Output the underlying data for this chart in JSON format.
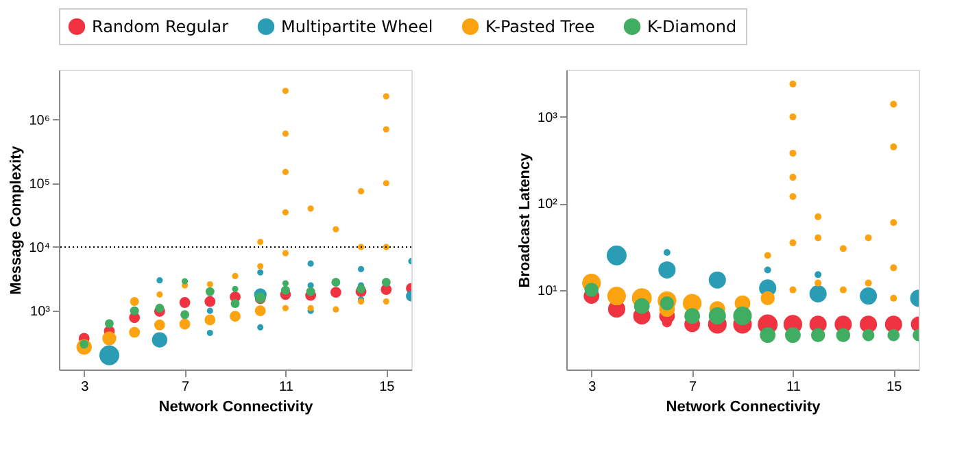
{
  "chart_data": [
    {
      "type": "bubble",
      "xlabel": "Network Connectivity",
      "ylabel": "Message Complexity",
      "log": "y",
      "legend": "top",
      "grid": false,
      "marker": "circle",
      "xlim": [
        2,
        16
      ],
      "xticks": [
        3,
        7,
        11,
        15
      ],
      "ylim": [
        120,
        6000000
      ],
      "yticks": [
        {
          "value": 1000,
          "label": "10³"
        },
        {
          "value": 10000,
          "label": "10⁴"
        },
        {
          "value": 100000,
          "label": "10⁵"
        },
        {
          "value": 1000000,
          "label": "10⁶"
        }
      ],
      "ref_lines": [
        {
          "axis": "y",
          "value": 10000,
          "label": null,
          "color": "#000000",
          "line_style": "dotted"
        }
      ],
      "series": [
        {
          "name": "Random Regular",
          "color": "#ef3340",
          "x": [
            3,
            4,
            5,
            6,
            7,
            8,
            9,
            10,
            11,
            12,
            13,
            14,
            15,
            16
          ],
          "values": [
            370,
            480,
            780,
            980,
            1350,
            1400,
            1650,
            1550,
            1800,
            1750,
            1950,
            2000,
            2150,
            2250
          ],
          "sizes": [
            0.3,
            0.3,
            0.3,
            0.3,
            0.3,
            0.3,
            0.3,
            0.3,
            0.3,
            0.3,
            0.3,
            0.3,
            0.3,
            0.3
          ]
        },
        {
          "name": "Multipartite Wheel",
          "color": "#2a9db5",
          "x": [
            4,
            6,
            6,
            8,
            8,
            10,
            10,
            10,
            12,
            12,
            12,
            14,
            14,
            14,
            16,
            16
          ],
          "values": [
            200,
            350,
            3000,
            450,
            1000,
            550,
            1800,
            4000,
            1000,
            2500,
            5500,
            1500,
            2500,
            4500,
            1700,
            6000
          ],
          "sizes": [
            1,
            0.6,
            0.1,
            0.1,
            0.1,
            0.1,
            0.4,
            0.1,
            0.1,
            0.1,
            0.1,
            0.1,
            0.1,
            0.1,
            0.3,
            0.1
          ]
        },
        {
          "name": "K-Pasted Tree",
          "color": "#fca311",
          "x": [
            3,
            4,
            5,
            5,
            6,
            6,
            7,
            7,
            8,
            8,
            9,
            9,
            10,
            10,
            10,
            11,
            11,
            11,
            11,
            11,
            11,
            12,
            12,
            13,
            13,
            14,
            14,
            14,
            15,
            15,
            15,
            15,
            15
          ],
          "values": [
            270,
            370,
            460,
            1400,
            600,
            1800,
            620,
            2500,
            720,
            2600,
            820,
            3500,
            1000,
            5000,
            12000,
            1100,
            8000,
            35000,
            150000,
            600000,
            2800000,
            1100,
            40000,
            1050,
            19000,
            1400,
            10000,
            75000,
            1400,
            10000,
            100000,
            700000,
            2300000
          ],
          "sizes": [
            0.6,
            0.5,
            0.3,
            0.2,
            0.3,
            0.1,
            0.3,
            0.1,
            0.3,
            0.1,
            0.3,
            0.1,
            0.3,
            0.1,
            0.1,
            0.1,
            0.1,
            0.1,
            0.1,
            0.1,
            0.1,
            0.1,
            0.1,
            0.1,
            0.1,
            0.1,
            0.1,
            0.1,
            0.1,
            0.1,
            0.1,
            0.1,
            0.1
          ]
        },
        {
          "name": "K-Diamond",
          "color": "#40ad63",
          "x": [
            3,
            4,
            5,
            6,
            7,
            7,
            8,
            9,
            9,
            10,
            11,
            11,
            12,
            13,
            14,
            15
          ],
          "values": [
            300,
            630,
            1000,
            1100,
            870,
            2900,
            2000,
            1300,
            2200,
            1600,
            2100,
            2700,
            2000,
            2800,
            2200,
            2800
          ],
          "sizes": [
            0.2,
            0.2,
            0.2,
            0.2,
            0.2,
            0.1,
            0.2,
            0.2,
            0.1,
            0.3,
            0.2,
            0.1,
            0.2,
            0.2,
            0.2,
            0.2
          ]
        }
      ]
    },
    {
      "type": "bubble",
      "xlabel": "Network Connectivity",
      "ylabel": "Broadcast Latency",
      "log": "y",
      "grid": false,
      "marker": "circle",
      "xlim": [
        2,
        16
      ],
      "xticks": [
        3,
        7,
        11,
        15
      ],
      "ylim": [
        1.2,
        3500
      ],
      "yticks": [
        {
          "value": 10,
          "label": "10¹"
        },
        {
          "value": 100,
          "label": "10²"
        },
        {
          "value": 1000,
          "label": "10³"
        }
      ],
      "series": [
        {
          "name": "Random Regular",
          "color": "#ef3340",
          "x": [
            3,
            4,
            5,
            6,
            6,
            7,
            8,
            9,
            10,
            11,
            12,
            13,
            14,
            15,
            16
          ],
          "values": [
            8.5,
            6,
            5,
            5,
            4.2,
            4,
            4,
            4,
            4,
            4,
            4,
            4,
            4,
            4,
            4
          ],
          "sizes": [
            0.62,
            0.75,
            0.75,
            0.62,
            0.25,
            0.62,
            0.88,
            0.88,
            1,
            0.88,
            0.75,
            0.75,
            0.75,
            0.75,
            0.62
          ]
        },
        {
          "name": "Multipartite Wheel",
          "color": "#2a9db5",
          "x": [
            4,
            6,
            6,
            8,
            10,
            10,
            12,
            12,
            14,
            16
          ],
          "values": [
            25,
            17,
            27,
            13,
            10.5,
            17,
            9,
            15,
            8.5,
            8
          ],
          "sizes": [
            1,
            0.75,
            0.12,
            0.75,
            0.75,
            0.12,
            0.75,
            0.12,
            0.75,
            0.75
          ]
        },
        {
          "name": "K-Pasted Tree",
          "color": "#fca311",
          "x": [
            3,
            4,
            5,
            6,
            6,
            7,
            8,
            9,
            10,
            10,
            11,
            11,
            11,
            11,
            11,
            11,
            11,
            12,
            12,
            12,
            13,
            13,
            14,
            14,
            15,
            15,
            15,
            15,
            15
          ],
          "values": [
            12,
            8.5,
            8,
            7.5,
            6,
            7,
            6,
            7,
            8,
            25,
            10,
            35,
            120,
            200,
            380,
            1000,
            2400,
            12,
            40,
            70,
            10,
            30,
            12,
            40,
            8,
            18,
            60,
            450,
            1400
          ],
          "sizes": [
            0.88,
            0.88,
            1,
            0.88,
            0.62,
            0.88,
            0.62,
            0.62,
            0.5,
            0.12,
            0.12,
            0.12,
            0.12,
            0.12,
            0.12,
            0.12,
            0.12,
            0.12,
            0.12,
            0.12,
            0.12,
            0.12,
            0.12,
            0.12,
            0.12,
            0.12,
            0.12,
            0.12,
            0.12
          ]
        },
        {
          "name": "K-Diamond",
          "color": "#40ad63",
          "x": [
            3,
            5,
            6,
            7,
            8,
            9,
            10,
            11,
            12,
            13,
            14,
            15,
            16
          ],
          "values": [
            10,
            6.5,
            7,
            5,
            5,
            5,
            3,
            3,
            3,
            3,
            3,
            3,
            3
          ],
          "sizes": [
            0.5,
            0.62,
            0.5,
            0.62,
            0.75,
            0.88,
            0.62,
            0.62,
            0.5,
            0.5,
            0.38,
            0.38,
            0.38
          ]
        }
      ]
    }
  ]
}
